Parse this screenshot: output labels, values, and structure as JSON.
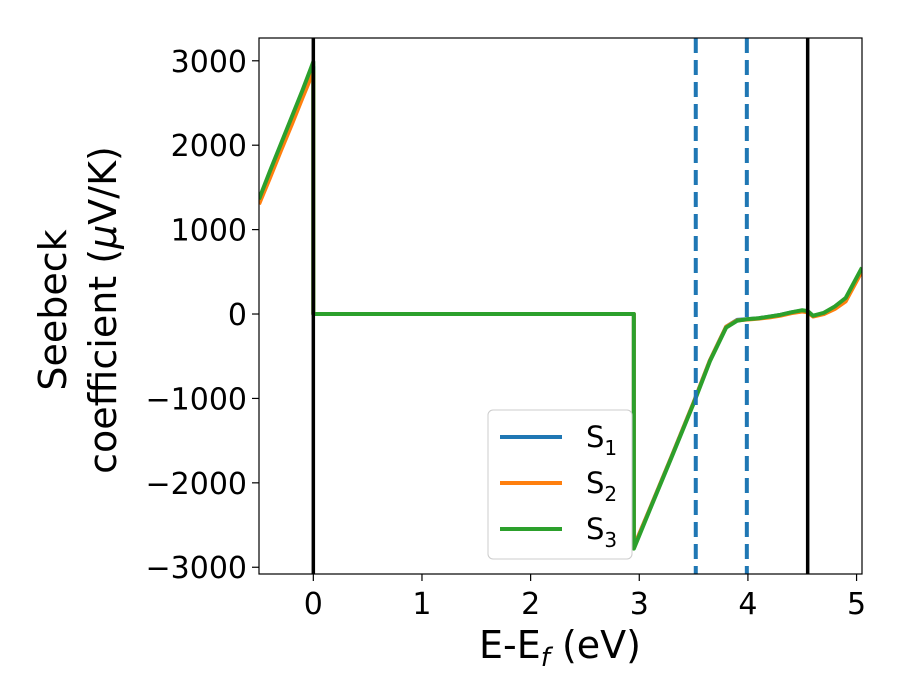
{
  "chart_data": {
    "type": "line",
    "xlabel": "E-E_f (eV)",
    "ylabel": "Seebeck coefficient (μV/K)",
    "xlim": [
      -0.5,
      5.05
    ],
    "ylim": [
      -3080,
      3270
    ],
    "x_ticks": [
      0,
      1,
      2,
      3,
      4,
      5
    ],
    "y_ticks": [
      -3000,
      -2000,
      -1000,
      0,
      1000,
      2000,
      3000
    ],
    "x_tick_labels": [
      "0",
      "1",
      "2",
      "3",
      "4",
      "5"
    ],
    "y_tick_labels": [
      "−3000",
      "−2000",
      "−1000",
      "0",
      "1000",
      "2000",
      "3000"
    ],
    "grid": false,
    "legend_position": "lower-right",
    "vertical_lines": [
      {
        "x": 0,
        "style": "solid",
        "color": "#000000"
      },
      {
        "x": 4.55,
        "style": "solid",
        "color": "#000000"
      },
      {
        "x": 3.52,
        "style": "dashed",
        "color": "#1f77b4"
      },
      {
        "x": 3.99,
        "style": "dashed",
        "color": "#1f77b4"
      }
    ],
    "series": [
      {
        "name": "S1",
        "label_main": "S",
        "label_sub": "1",
        "color": "#1f77b4",
        "x": [
          -0.5,
          -0.4,
          -0.3,
          -0.2,
          -0.1,
          -0.02,
          0.0,
          0.0,
          1.0,
          2.0,
          2.95,
          2.95,
          3.1,
          3.3,
          3.5,
          3.65,
          3.8,
          3.9,
          4.0,
          4.1,
          4.2,
          4.3,
          4.4,
          4.5,
          4.55,
          4.6,
          4.7,
          4.8,
          4.9,
          5.05
        ],
        "y": [
          1320,
          1640,
          1960,
          2280,
          2600,
          2860,
          2930,
          0,
          0,
          0,
          0,
          -2760,
          -2300,
          -1680,
          -1050,
          -550,
          -150,
          -70,
          -60,
          -50,
          -30,
          -10,
          20,
          40,
          30,
          -25,
          10,
          80,
          170,
          530
        ]
      },
      {
        "name": "S2",
        "label_main": "S",
        "label_sub": "2",
        "color": "#ff7f0e",
        "x": [
          -0.5,
          -0.4,
          -0.3,
          -0.2,
          -0.1,
          -0.02,
          0.0,
          0.0,
          1.0,
          2.0,
          2.95,
          2.95,
          3.1,
          3.3,
          3.5,
          3.65,
          3.8,
          3.9,
          4.0,
          4.1,
          4.2,
          4.3,
          4.4,
          4.5,
          4.55,
          4.6,
          4.7,
          4.8,
          4.9,
          5.05
        ],
        "y": [
          1300,
          1610,
          1930,
          2240,
          2560,
          2810,
          2880,
          0,
          0,
          0,
          0,
          -2760,
          -2300,
          -1680,
          -1050,
          -550,
          -150,
          -75,
          -65,
          -55,
          -40,
          -20,
          10,
          30,
          20,
          -30,
          0,
          60,
          150,
          510
        ]
      },
      {
        "name": "S3",
        "label_main": "S",
        "label_sub": "3",
        "color": "#2ca02c",
        "x": [
          -0.5,
          -0.4,
          -0.3,
          -0.2,
          -0.1,
          -0.02,
          0.0,
          0.0,
          1.0,
          2.0,
          2.95,
          2.95,
          3.1,
          3.3,
          3.5,
          3.65,
          3.8,
          3.9,
          4.0,
          4.1,
          4.2,
          4.3,
          4.4,
          4.5,
          4.55,
          4.6,
          4.7,
          4.8,
          4.9,
          5.05
        ],
        "y": [
          1360,
          1690,
          2010,
          2330,
          2650,
          2920,
          2990,
          0,
          0,
          0,
          0,
          -2780,
          -2310,
          -1690,
          -1060,
          -560,
          -160,
          -80,
          -60,
          -50,
          -30,
          -10,
          20,
          45,
          35,
          -20,
          15,
          90,
          190,
          550
        ]
      }
    ]
  }
}
